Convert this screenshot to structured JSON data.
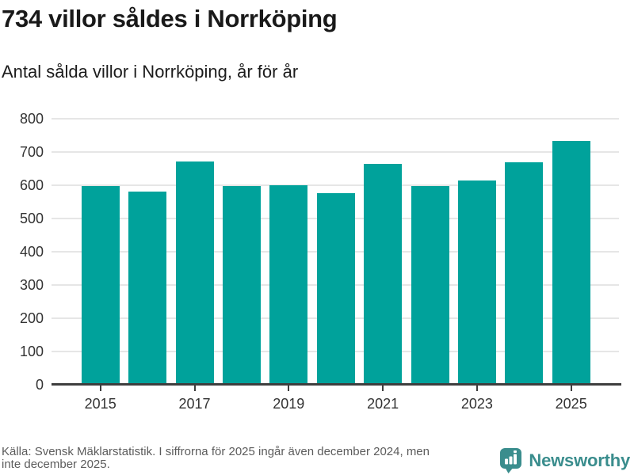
{
  "header": {
    "title": "734 villor såldes i Norrköping",
    "subtitle": "Antal sålda villor i Norrköping, år för år"
  },
  "chart_data": {
    "type": "bar",
    "title": "734 villor såldes i Norrköping",
    "subtitle": "Antal sålda villor i Norrköping, år för år",
    "categories": [
      2015,
      2016,
      2017,
      2018,
      2019,
      2020,
      2021,
      2022,
      2023,
      2024,
      2025
    ],
    "values": [
      598,
      581,
      671,
      598,
      600,
      577,
      665,
      598,
      614,
      669,
      734
    ],
    "xlabel": "",
    "ylabel": "",
    "ylim": [
      0,
      800
    ],
    "yticks": [
      0,
      100,
      200,
      300,
      400,
      500,
      600,
      700,
      800
    ],
    "xtick_labels": [
      "2015",
      "2017",
      "2019",
      "2021",
      "2023",
      "2025"
    ],
    "grid": true,
    "legend": false,
    "bar_color": "#00a29b",
    "gridline_color": "#e6e6e6",
    "axis_color": "#3e3e3e"
  },
  "footer": {
    "source_line1": "Källa: Svensk Mäklarstatistik. I siffrorna för 2025 ingår även december 2024, men",
    "source_line2": "inte december 2025.",
    "brand_name": "Newsworthy",
    "brand_color": "#3a8d8d"
  }
}
